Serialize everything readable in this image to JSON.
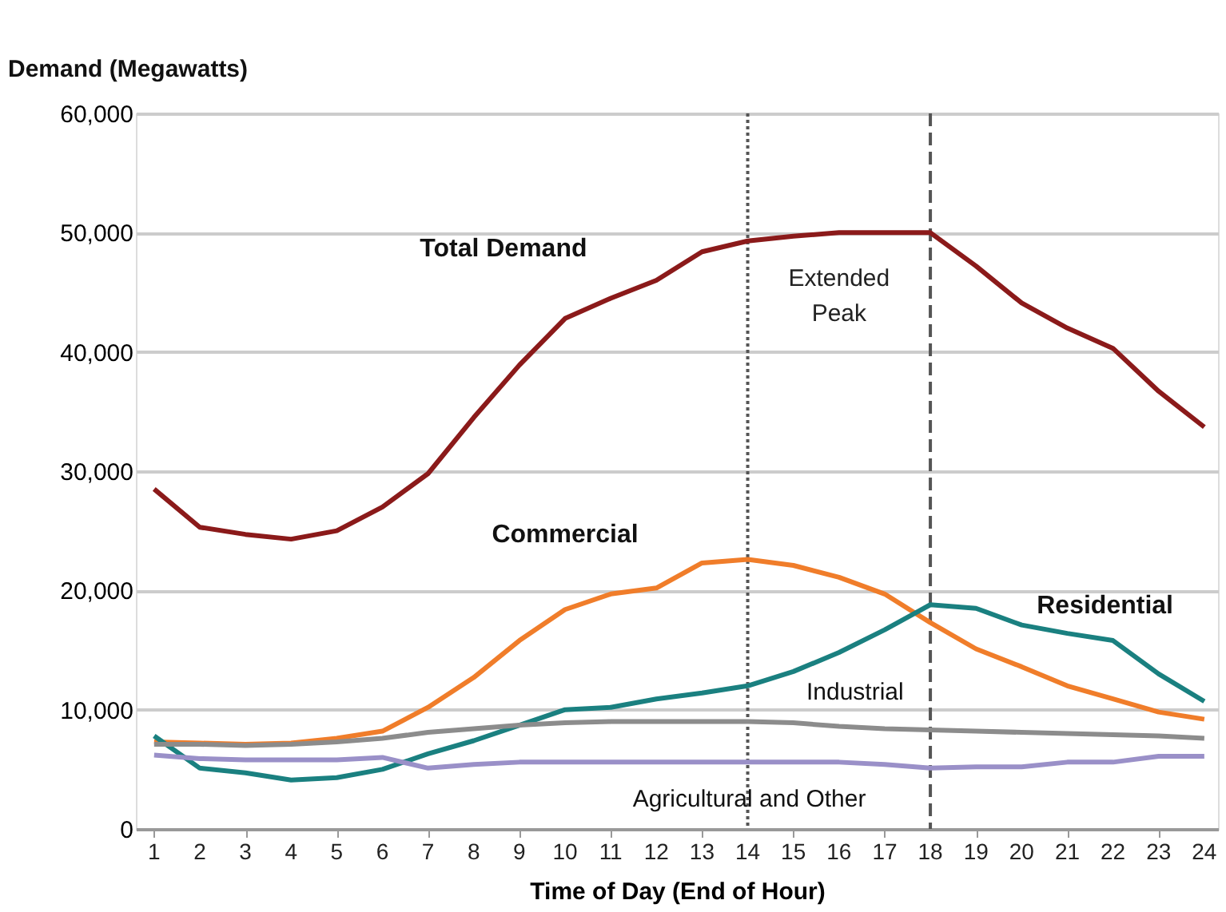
{
  "chart_data": {
    "type": "line",
    "xlabel": "Time of Day (End of Hour)",
    "ylabel": "Demand (Megawatts)",
    "x": [
      1,
      2,
      3,
      4,
      5,
      6,
      7,
      8,
      9,
      10,
      11,
      12,
      13,
      14,
      15,
      16,
      17,
      18,
      19,
      20,
      21,
      22,
      23,
      24
    ],
    "series": [
      {
        "name": "Total Demand",
        "color": "#8b1a1a",
        "values": [
          28500,
          25300,
          24700,
          24300,
          25000,
          27000,
          29800,
          34500,
          38900,
          42800,
          44500,
          46000,
          48400,
          49300,
          49700,
          50000,
          50000,
          50000,
          47200,
          44100,
          42000,
          40300,
          36700,
          33700
        ]
      },
      {
        "name": "Commercial",
        "color": "#f07d2a",
        "values": [
          7300,
          7200,
          7100,
          7200,
          7600,
          8200,
          10200,
          12700,
          15800,
          18400,
          19700,
          20200,
          22300,
          22600,
          22100,
          21100,
          19700,
          17300,
          15100,
          13600,
          12000,
          10900,
          9800,
          9200
        ]
      },
      {
        "name": "Residential",
        "color": "#1a8080",
        "values": [
          7800,
          5100,
          4700,
          4100,
          4300,
          5000,
          6300,
          7400,
          8700,
          10000,
          10200,
          10900,
          11400,
          12000,
          13200,
          14800,
          16700,
          18800,
          18500,
          17100,
          16400,
          15800,
          13000,
          10700
        ]
      },
      {
        "name": "Industrial",
        "color": "#8c8c8c",
        "values": [
          7100,
          7100,
          7000,
          7100,
          7300,
          7600,
          8100,
          8400,
          8700,
          8900,
          9000,
          9000,
          9000,
          9000,
          8900,
          8600,
          8400,
          8300,
          8200,
          8100,
          8000,
          7900,
          7800,
          7600
        ]
      },
      {
        "name": "Agricultural and Other",
        "color": "#9a90c8",
        "values": [
          6200,
          5900,
          5800,
          5800,
          5800,
          6000,
          5100,
          5400,
          5600,
          5600,
          5600,
          5600,
          5600,
          5600,
          5600,
          5600,
          5400,
          5100,
          5200,
          5200,
          5600,
          5600,
          6100,
          6100
        ]
      }
    ],
    "ref_lines": [
      {
        "axis": "x",
        "value": 14,
        "line_style": "dotted",
        "color": "#555555"
      },
      {
        "axis": "x",
        "value": 18,
        "line_style": "dashed",
        "color": "#555555"
      }
    ],
    "annotations": [
      "Extended Peak"
    ],
    "xlim": [
      0.6,
      24.3
    ],
    "xticks": [
      1,
      2,
      3,
      4,
      5,
      6,
      7,
      8,
      9,
      10,
      11,
      12,
      13,
      14,
      15,
      16,
      17,
      18,
      19,
      20,
      21,
      22,
      23,
      24
    ],
    "ylim": [
      0,
      60000
    ],
    "yticks": [
      0,
      {
        "value": 10000,
        "label": "10,000"
      },
      {
        "value": 20000,
        "label": "20,000"
      },
      {
        "value": 30000,
        "label": "30,000"
      },
      {
        "value": 40000,
        "label": "40,000"
      },
      {
        "value": 50000,
        "label": "50,000"
      },
      {
        "value": 60000,
        "label": "60,000"
      }
    ],
    "grid": "y",
    "legend": false
  }
}
